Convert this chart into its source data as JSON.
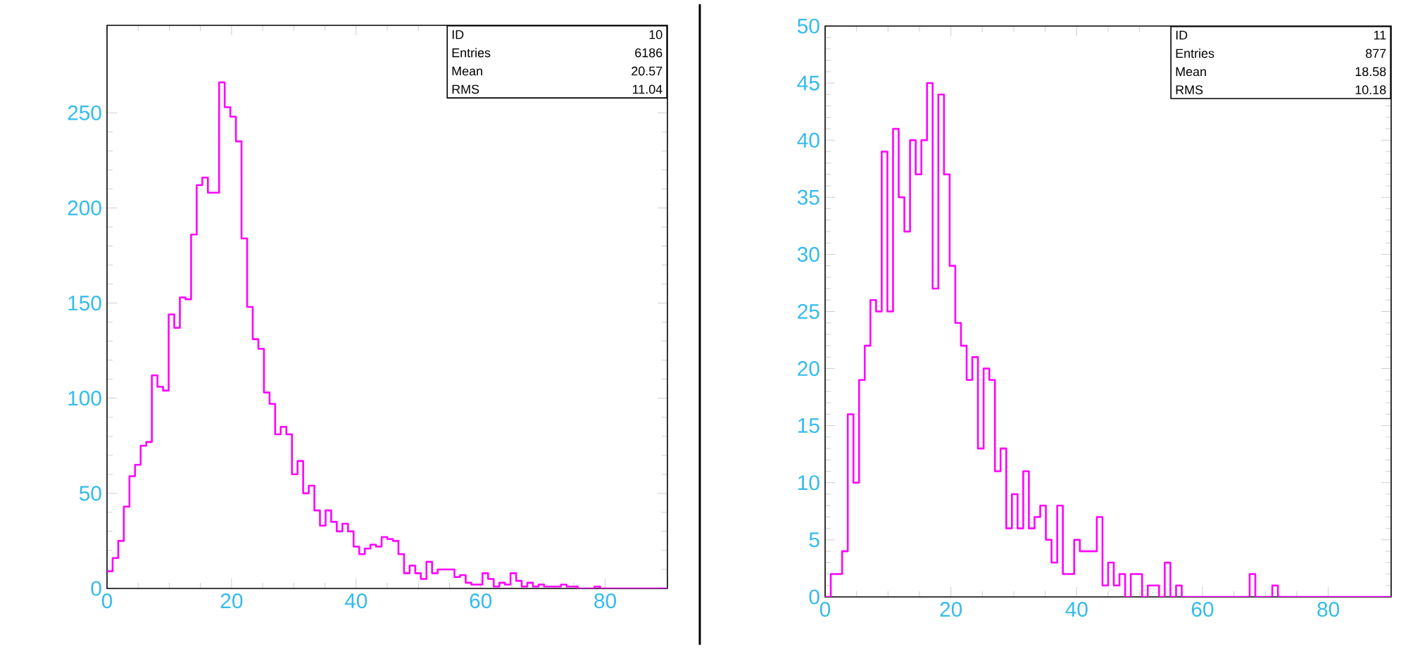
{
  "chart_data": [
    {
      "type": "histogram",
      "color": "#ff00ff",
      "bins": [
        0,
        0.9,
        1.8,
        2.7,
        3.6,
        4.5,
        5.4,
        6.3,
        7.2,
        8.1,
        9,
        9.9,
        10.8,
        11.7,
        12.6,
        13.5,
        14.4,
        15.3,
        16.2,
        17.1,
        18,
        18.9,
        19.8,
        20.7,
        21.6,
        22.5,
        23.4,
        24.3,
        25.2,
        26.1,
        27,
        27.9,
        28.8,
        29.7,
        30.6,
        31.5,
        32.4,
        33.3,
        34.2,
        35.1,
        36,
        36.9,
        37.8,
        38.7,
        39.6,
        40.5,
        41.4,
        42.3,
        43.2,
        44.1,
        45,
        45.9,
        46.8,
        47.7,
        48.6,
        49.5,
        50.4,
        51.3,
        52.2,
        53.1,
        54,
        54.9,
        55.8,
        56.7,
        57.6,
        58.5,
        59.4,
        60.3,
        61.2,
        62.1,
        63,
        63.9,
        64.8,
        65.7,
        66.6,
        67.5,
        68.4,
        69.3,
        70.2,
        71.1,
        72,
        72.9,
        73.8,
        74.7,
        75.6,
        76.5,
        77.4,
        78.3,
        79.2,
        80.1,
        81,
        81.9,
        82.8,
        83.7,
        84.6,
        85.5,
        86.4,
        87.3,
        88.2,
        89.1,
        90
      ],
      "values": [
        9,
        16,
        25,
        43,
        59,
        65,
        75,
        77,
        112,
        106,
        104,
        144,
        137,
        153,
        152,
        186,
        212,
        216,
        208,
        208,
        266,
        253,
        248,
        235,
        184,
        148,
        131,
        126,
        103,
        97,
        81,
        85,
        81,
        60,
        67,
        50,
        54,
        41,
        33,
        41,
        35,
        30,
        34,
        30,
        22,
        18,
        21,
        23,
        22,
        27,
        26,
        25,
        18,
        8,
        12,
        8,
        5,
        14,
        8,
        10,
        10,
        10,
        6,
        7,
        3,
        2,
        2,
        8,
        5,
        1,
        3,
        2,
        8,
        4,
        1,
        3,
        1,
        2,
        1,
        1,
        1,
        2,
        1,
        1,
        0,
        0,
        0,
        1,
        0,
        0,
        0,
        0,
        0,
        0,
        0,
        0,
        0,
        0,
        0,
        0
      ],
      "xlim": [
        0,
        90
      ],
      "ylim": [
        0,
        296
      ],
      "xticks": [
        0,
        20,
        40,
        60,
        80
      ],
      "yticks": [
        0,
        50,
        100,
        150,
        200,
        250
      ],
      "annotations": [
        "ID",
        "10",
        "Entries",
        "6186",
        "Mean",
        "20.57",
        "RMS",
        "11.04"
      ]
    },
    {
      "type": "histogram",
      "color": "#ff00ff",
      "bins": [
        0,
        0.9,
        1.8,
        2.7,
        3.6,
        4.5,
        5.4,
        6.3,
        7.2,
        8.1,
        9,
        9.9,
        10.8,
        11.7,
        12.6,
        13.5,
        14.4,
        15.3,
        16.2,
        17.1,
        18,
        18.9,
        19.8,
        20.7,
        21.6,
        22.5,
        23.4,
        24.3,
        25.2,
        26.1,
        27,
        27.9,
        28.8,
        29.7,
        30.6,
        31.5,
        32.4,
        33.3,
        34.2,
        35.1,
        36,
        36.9,
        37.8,
        38.7,
        39.6,
        40.5,
        41.4,
        42.3,
        43.2,
        44.1,
        45,
        45.9,
        46.8,
        47.7,
        48.6,
        49.5,
        50.4,
        51.3,
        52.2,
        53.1,
        54,
        54.9,
        55.8,
        56.7,
        57.6,
        58.5,
        59.4,
        60.3,
        61.2,
        62.1,
        63,
        63.9,
        64.8,
        65.7,
        66.6,
        67.5,
        68.4,
        69.3,
        70.2,
        71.1,
        72,
        72.9,
        73.8,
        74.7,
        75.6,
        76.5,
        77.4,
        78.3,
        79.2,
        80.1,
        81,
        81.9,
        82.8,
        83.7,
        84.6,
        85.5,
        86.4,
        87.3,
        88.2,
        89.1,
        90
      ],
      "values": [
        0,
        2,
        2,
        4,
        16,
        10,
        19,
        22,
        26,
        25,
        39,
        25,
        41,
        35,
        32,
        40,
        37,
        40,
        45,
        27,
        44,
        37,
        29,
        24,
        22,
        19,
        21,
        13,
        20,
        19,
        11,
        13,
        6,
        9,
        6,
        11,
        6,
        7,
        8,
        5,
        3,
        8,
        2,
        2,
        5,
        4,
        4,
        4,
        7,
        1,
        3,
        1,
        2,
        0,
        2,
        2,
        0,
        1,
        1,
        0,
        3,
        0,
        1,
        0,
        0,
        0,
        0,
        0,
        0,
        0,
        0,
        0,
        0,
        0,
        0,
        2,
        0,
        0,
        0,
        1,
        0,
        0,
        0,
        0,
        0,
        0,
        0,
        0,
        0,
        0,
        0,
        0,
        0,
        0,
        0,
        0,
        0,
        0,
        0,
        0
      ],
      "xlim": [
        0,
        90
      ],
      "ylim": [
        0,
        50
      ],
      "xticks": [
        0,
        20,
        40,
        60,
        80
      ],
      "yticks": [
        0,
        5,
        10,
        15,
        20,
        25,
        30,
        35,
        40,
        45,
        50
      ],
      "annotations": [
        "ID",
        "11",
        "Entries",
        "877",
        "Mean",
        "18.58",
        "RMS",
        "10.18"
      ]
    }
  ]
}
